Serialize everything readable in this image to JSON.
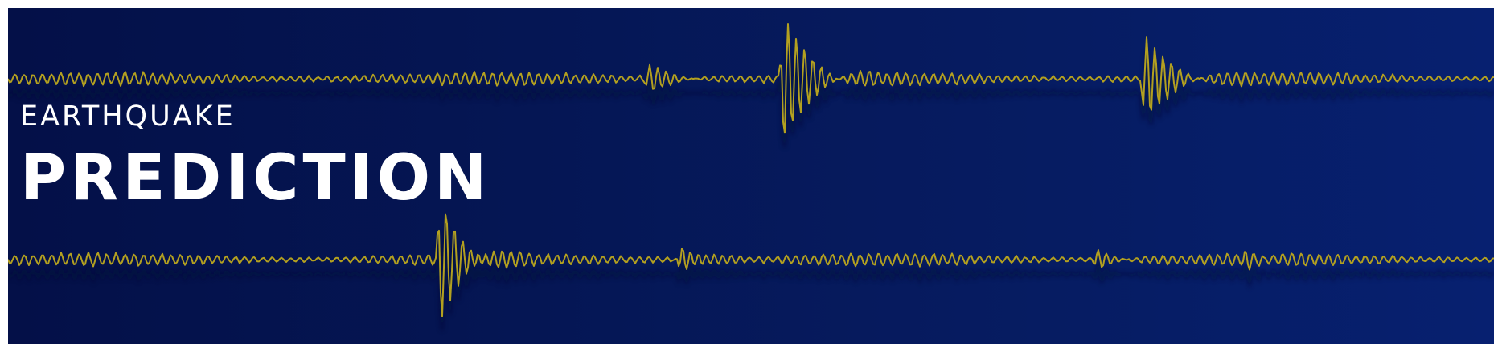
{
  "banner": {
    "subtitle": "EARTHQUAKE",
    "title": "PREDICTION",
    "background_color": "#051654",
    "waveform_color": "#b3a020",
    "text_color": "#ffffff"
  },
  "seismograms": [
    {
      "name": "upper-trace",
      "bursts": [
        {
          "at": 0.522,
          "strength": 1.0
        },
        {
          "at": 0.765,
          "strength": 0.7
        },
        {
          "at": 0.431,
          "strength": 0.2
        }
      ]
    },
    {
      "name": "lower-trace",
      "bursts": [
        {
          "at": 0.291,
          "strength": 1.0
        },
        {
          "at": 0.453,
          "strength": 0.25
        },
        {
          "at": 0.733,
          "strength": 0.15
        },
        {
          "at": 0.834,
          "strength": 0.12
        }
      ]
    }
  ]
}
